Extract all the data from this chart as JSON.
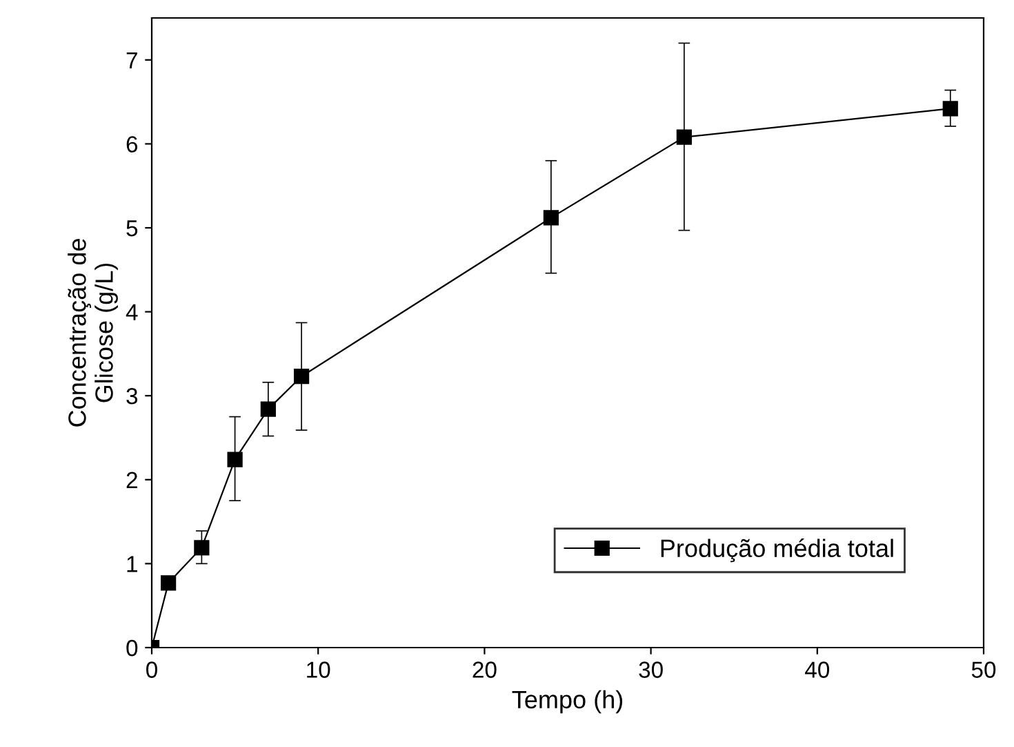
{
  "chart_data": {
    "type": "line",
    "xlabel": "Tempo (h)",
    "ylabel": "Concentração de\nGlicose (g/L)",
    "x": [
      0,
      1,
      3,
      5,
      7,
      9,
      24,
      32,
      48
    ],
    "series": [
      {
        "name": "Produção média total",
        "color": "#000000",
        "values": [
          0,
          0.77,
          1.19,
          2.24,
          2.84,
          3.23,
          5.12,
          6.08,
          6.42
        ],
        "errors": [
          null,
          null,
          [
            1.0,
            1.39
          ],
          [
            1.75,
            2.75
          ],
          [
            2.52,
            3.16
          ],
          [
            2.59,
            3.87
          ],
          [
            4.46,
            5.8
          ],
          [
            4.97,
            7.2
          ],
          [
            6.21,
            6.64
          ]
        ]
      }
    ],
    "xlim": [
      0,
      50
    ],
    "xticks": [
      0,
      10,
      20,
      30,
      40,
      50
    ],
    "ylim": [
      0,
      7.5
    ],
    "yticks": [
      0,
      1,
      2,
      3,
      4,
      5,
      6,
      7
    ],
    "marker": "square",
    "line_style": "solid",
    "grid": false,
    "legend": "bottom right"
  }
}
